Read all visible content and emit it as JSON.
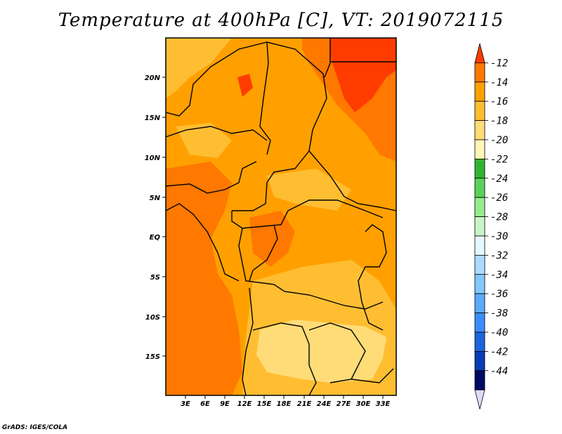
{
  "title": "Temperature at 400hPa [C], VT: 2019072115",
  "credit": "GrADS: IGES/COLA",
  "map": {
    "lon_ticks": [
      "3E",
      "6E",
      "9E",
      "12E",
      "15E",
      "18E",
      "21E",
      "24E",
      "27E",
      "30E",
      "33E"
    ],
    "lat_ticks": [
      "20N",
      "15N",
      "10N",
      "5N",
      "EQ",
      "5S",
      "10S",
      "15S"
    ]
  },
  "colorbar": {
    "labels": [
      "-12",
      "-14",
      "-16",
      "-18",
      "-20",
      "-22",
      "-24",
      "-26",
      "-28",
      "-30",
      "-32",
      "-34",
      "-36",
      "-38",
      "-40",
      "-42",
      "-44"
    ],
    "colors": [
      "#ff3c00",
      "#ff7800",
      "#ffa000",
      "#ffbe32",
      "#ffdc78",
      "#fff5b4",
      "#32b432",
      "#5ad25a",
      "#96ec8c",
      "#c8f5c8",
      "#e6f8ff",
      "#aadcff",
      "#82c8ff",
      "#5aaaff",
      "#3c8cff",
      "#1e64dc",
      "#0a3cb4",
      "#000a64",
      "#dcdcff"
    ]
  },
  "colors": {
    "c16": "#ffa000",
    "c14": "#ff7800",
    "c12": "#ff3c00",
    "c18": "#ffbe32",
    "c20": "#ffdc78"
  }
}
